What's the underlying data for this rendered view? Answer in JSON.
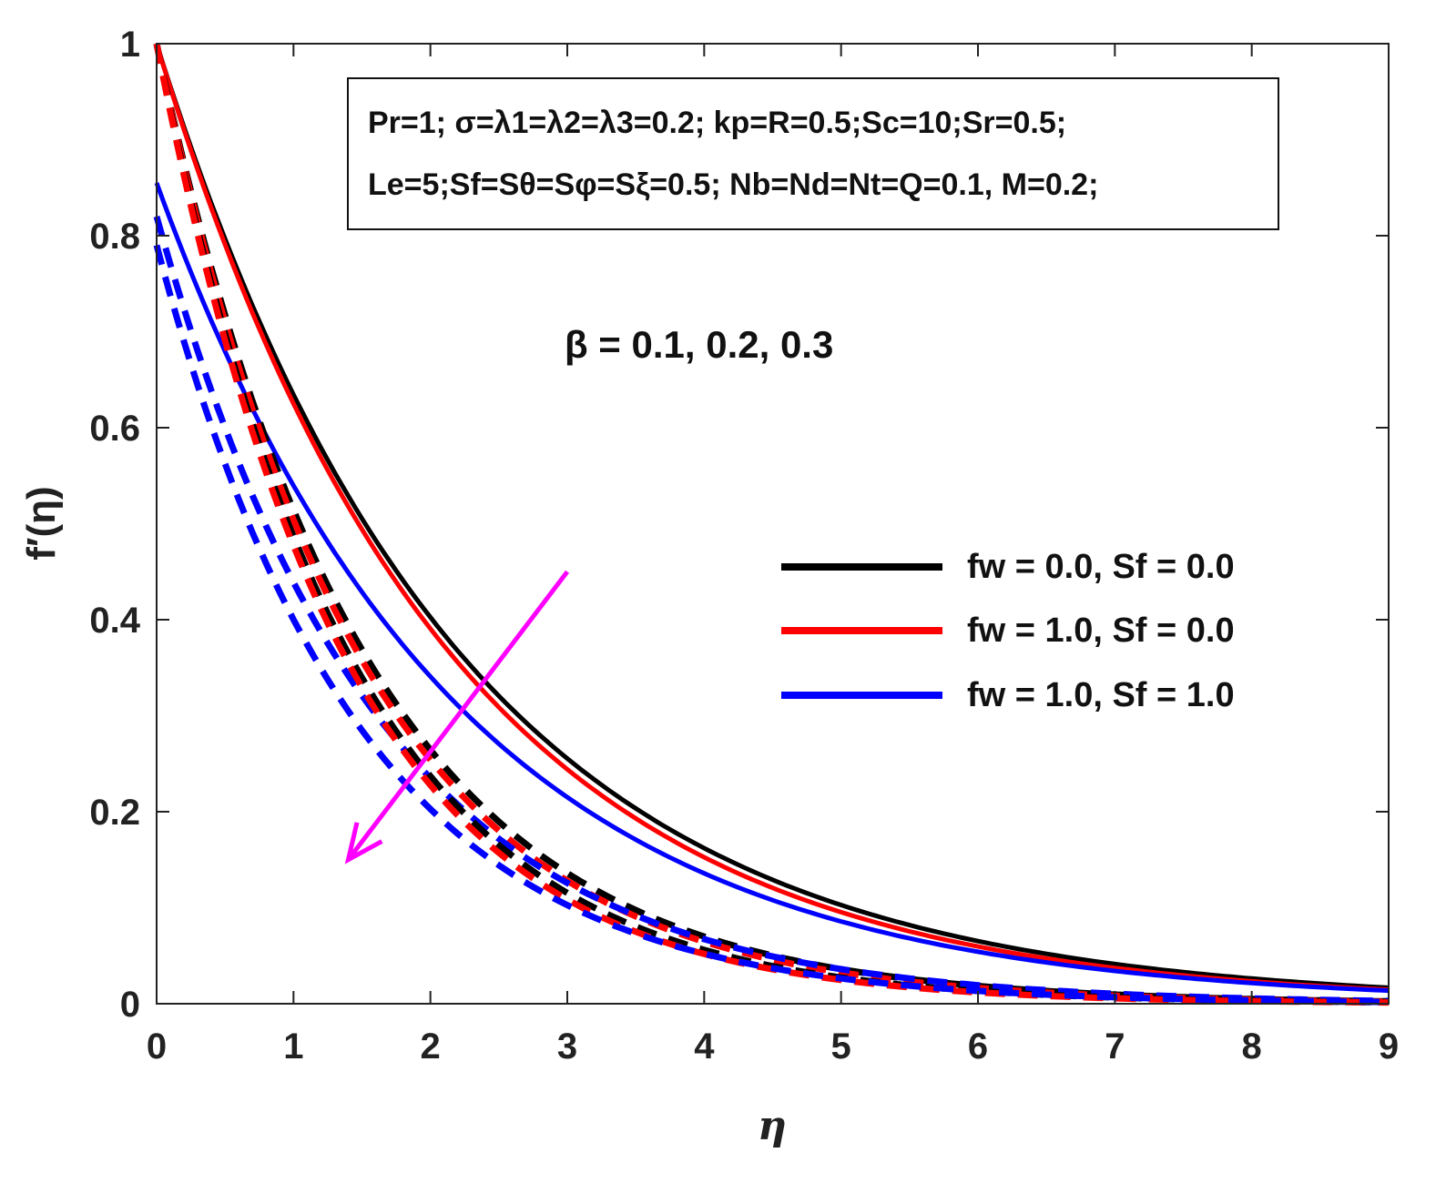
{
  "chart_data": {
    "type": "line",
    "xlabel": "η",
    "ylabel": "f′(η)",
    "xlim": [
      0,
      9
    ],
    "ylim": [
      0,
      1
    ],
    "xticks": [
      "0",
      "1",
      "2",
      "3",
      "4",
      "5",
      "6",
      "7",
      "8",
      "9"
    ],
    "yticks": [
      "0",
      "0.2",
      "0.4",
      "0.6",
      "0.8",
      "1"
    ],
    "grid": false,
    "params_box": {
      "line1": "Pr=1; σ=λ1=λ2=λ3=0.2; kp=R=0.5;Sc=10;Sr=0.5;",
      "line2": "Le=5;Sf=Sθ=Sφ=Sξ=0.5; Nb=Nd=Nt=Q=0.1, M=0.2;"
    },
    "annotation": "β = 0.1, 0.2, 0.3",
    "legend_position": "center-right",
    "legend": [
      {
        "name": "fw = 0.0, Sf = 0.0",
        "color": "#000000"
      },
      {
        "name": "fw = 1.0, Sf = 0.0",
        "color": "#ff0000"
      },
      {
        "name": "fw = 1.0, Sf = 1.0",
        "color": "#0000ff"
      }
    ],
    "arrow": {
      "color": "#ff00ff",
      "from": [
        3.0,
        0.45
      ],
      "to": [
        1.4,
        0.15
      ]
    },
    "series": [
      {
        "group": "fw = 0.0, Sf = 0.0",
        "beta": 0.1,
        "style": "solid",
        "color": "#000000",
        "f0": 1.0,
        "decay": 0.455
      },
      {
        "group": "fw = 1.0, Sf = 0.0",
        "beta": 0.1,
        "style": "solid",
        "color": "#ff0000",
        "f0": 1.0,
        "decay": 0.47
      },
      {
        "group": "fw = 1.0, Sf = 1.0",
        "beta": 0.1,
        "style": "solid",
        "color": "#0000ff",
        "f0": 0.855,
        "decay": 0.46
      },
      {
        "group": "fw = 0.0, Sf = 0.0",
        "beta": 0.2,
        "style": "dashed",
        "color": "#000000",
        "f0": 1.0,
        "decay": 0.665
      },
      {
        "group": "fw = 1.0, Sf = 0.0",
        "beta": 0.2,
        "style": "dashed",
        "color": "#ff0000",
        "f0": 1.0,
        "decay": 0.685
      },
      {
        "group": "fw = 1.0, Sf = 1.0",
        "beta": 0.2,
        "style": "dashed",
        "color": "#0000ff",
        "f0": 0.82,
        "decay": 0.625
      },
      {
        "group": "fw = 0.0, Sf = 0.0",
        "beta": 0.3,
        "style": "dashed",
        "color": "#000000",
        "f0": 1.0,
        "decay": 0.72
      },
      {
        "group": "fw = 1.0, Sf = 0.0",
        "beta": 0.3,
        "style": "dashed",
        "color": "#ff0000",
        "f0": 1.0,
        "decay": 0.74
      },
      {
        "group": "fw = 1.0, Sf = 1.0",
        "beta": 0.3,
        "style": "dashed",
        "color": "#0000ff",
        "f0": 0.79,
        "decay": 0.68
      }
    ]
  }
}
